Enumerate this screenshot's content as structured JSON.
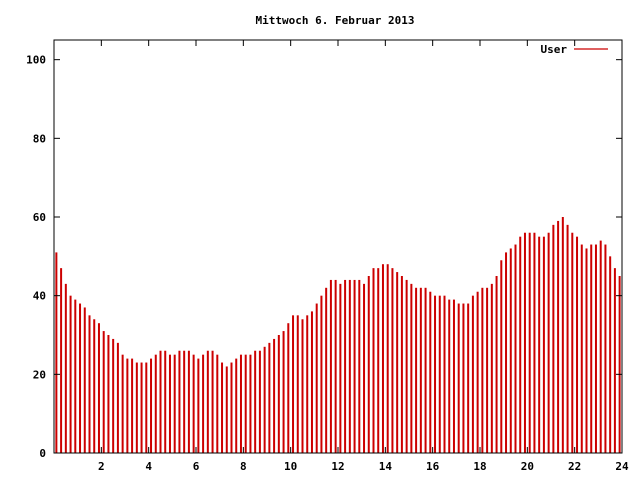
{
  "chart_data": {
    "type": "bar",
    "title": "Mittwoch 6. Februar 2013",
    "xlabel": "",
    "ylabel": "",
    "xlim": [
      0,
      24
    ],
    "ylim": [
      0,
      105
    ],
    "xticks": [
      "2",
      "4",
      "6",
      "8",
      "10",
      "12",
      "14",
      "16",
      "18",
      "20",
      "22",
      "24"
    ],
    "yticks": [
      "0",
      "20",
      "40",
      "60",
      "80",
      "100"
    ],
    "grid": false,
    "legend_position": "top-right",
    "series": [
      {
        "name": "User",
        "color": "#cc0000",
        "points": [
          [
            0.1,
            51
          ],
          [
            0.3,
            47
          ],
          [
            0.5,
            43
          ],
          [
            0.7,
            40
          ],
          [
            0.9,
            39
          ],
          [
            1.1,
            38
          ],
          [
            1.3,
            37
          ],
          [
            1.5,
            35
          ],
          [
            1.7,
            34
          ],
          [
            1.9,
            33
          ],
          [
            2.1,
            31
          ],
          [
            2.3,
            30
          ],
          [
            2.5,
            29
          ],
          [
            2.7,
            28
          ],
          [
            2.9,
            25
          ],
          [
            3.1,
            24
          ],
          [
            3.3,
            24
          ],
          [
            3.5,
            23
          ],
          [
            3.7,
            23
          ],
          [
            3.9,
            23
          ],
          [
            4.1,
            24
          ],
          [
            4.3,
            25
          ],
          [
            4.5,
            26
          ],
          [
            4.7,
            26
          ],
          [
            4.9,
            25
          ],
          [
            5.1,
            25
          ],
          [
            5.3,
            26
          ],
          [
            5.5,
            26
          ],
          [
            5.7,
            26
          ],
          [
            5.9,
            25
          ],
          [
            6.1,
            24
          ],
          [
            6.3,
            25
          ],
          [
            6.5,
            26
          ],
          [
            6.7,
            26
          ],
          [
            6.9,
            25
          ],
          [
            7.1,
            23
          ],
          [
            7.3,
            22
          ],
          [
            7.5,
            23
          ],
          [
            7.7,
            24
          ],
          [
            7.9,
            25
          ],
          [
            8.1,
            25
          ],
          [
            8.3,
            25
          ],
          [
            8.5,
            26
          ],
          [
            8.7,
            26
          ],
          [
            8.9,
            27
          ],
          [
            9.1,
            28
          ],
          [
            9.3,
            29
          ],
          [
            9.5,
            30
          ],
          [
            9.7,
            31
          ],
          [
            9.9,
            33
          ],
          [
            10.1,
            35
          ],
          [
            10.3,
            35
          ],
          [
            10.5,
            34
          ],
          [
            10.7,
            35
          ],
          [
            10.9,
            36
          ],
          [
            11.1,
            38
          ],
          [
            11.3,
            40
          ],
          [
            11.5,
            42
          ],
          [
            11.7,
            44
          ],
          [
            11.9,
            44
          ],
          [
            12.1,
            43
          ],
          [
            12.3,
            44
          ],
          [
            12.5,
            44
          ],
          [
            12.7,
            44
          ],
          [
            12.9,
            44
          ],
          [
            13.1,
            43
          ],
          [
            13.3,
            45
          ],
          [
            13.5,
            47
          ],
          [
            13.7,
            47
          ],
          [
            13.9,
            48
          ],
          [
            14.1,
            48
          ],
          [
            14.3,
            47
          ],
          [
            14.5,
            46
          ],
          [
            14.7,
            45
          ],
          [
            14.9,
            44
          ],
          [
            15.1,
            43
          ],
          [
            15.3,
            42
          ],
          [
            15.5,
            42
          ],
          [
            15.7,
            42
          ],
          [
            15.9,
            41
          ],
          [
            16.1,
            40
          ],
          [
            16.3,
            40
          ],
          [
            16.5,
            40
          ],
          [
            16.7,
            39
          ],
          [
            16.9,
            39
          ],
          [
            17.1,
            38
          ],
          [
            17.3,
            38
          ],
          [
            17.5,
            38
          ],
          [
            17.7,
            40
          ],
          [
            17.9,
            41
          ],
          [
            18.1,
            42
          ],
          [
            18.3,
            42
          ],
          [
            18.5,
            43
          ],
          [
            18.7,
            45
          ],
          [
            18.9,
            49
          ],
          [
            19.1,
            51
          ],
          [
            19.3,
            52
          ],
          [
            19.5,
            53
          ],
          [
            19.7,
            55
          ],
          [
            19.9,
            56
          ],
          [
            20.1,
            56
          ],
          [
            20.3,
            56
          ],
          [
            20.5,
            55
          ],
          [
            20.7,
            55
          ],
          [
            20.9,
            56
          ],
          [
            21.1,
            58
          ],
          [
            21.3,
            59
          ],
          [
            21.5,
            60
          ],
          [
            21.7,
            58
          ],
          [
            21.9,
            56
          ],
          [
            22.1,
            55
          ],
          [
            22.3,
            53
          ],
          [
            22.5,
            52
          ],
          [
            22.7,
            53
          ],
          [
            22.9,
            53
          ],
          [
            23.1,
            54
          ],
          [
            23.3,
            53
          ],
          [
            23.5,
            50
          ],
          [
            23.7,
            47
          ],
          [
            23.9,
            45
          ]
        ]
      }
    ]
  }
}
